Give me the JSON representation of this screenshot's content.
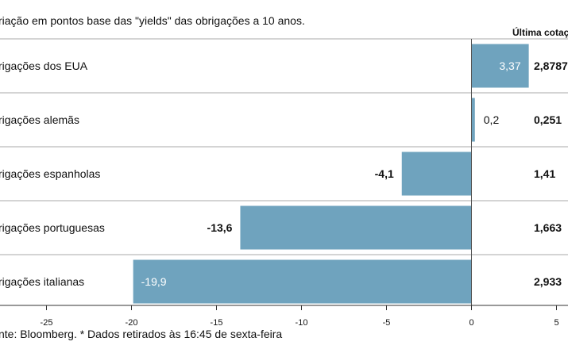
{
  "chart_data": {
    "type": "bar",
    "orientation": "horizontal",
    "subtitle": "riação em pontos base das \"yields\" das obrigações a 10 anos.",
    "quote_header": "Última cotaç",
    "categories": [
      "rigações dos EUA",
      "rigações alemãs",
      "rigações espanholas",
      "rigações portuguesas",
      "rigações italianas"
    ],
    "values": [
      3.37,
      0.2,
      -4.1,
      -13.6,
      -19.9
    ],
    "value_labels": [
      "3,37",
      "0,2",
      "-4,1",
      "-13,6",
      "-19,9"
    ],
    "quotes": [
      "2,8787",
      "0,251",
      "1,41",
      "1,663",
      "2,933"
    ],
    "xlim": [
      -27.5,
      5
    ],
    "x_ticks": [
      -25,
      -20,
      -15,
      -10,
      -5,
      0,
      5
    ],
    "x_tick_labels": [
      "-25",
      "-20",
      "-15",
      "-10",
      "-5",
      "0",
      "5"
    ],
    "grid": false,
    "bar_color": "#6fa3be",
    "source": "nte: Bloomberg.  * Dados retirados às 16:45 de sexta-feira"
  }
}
